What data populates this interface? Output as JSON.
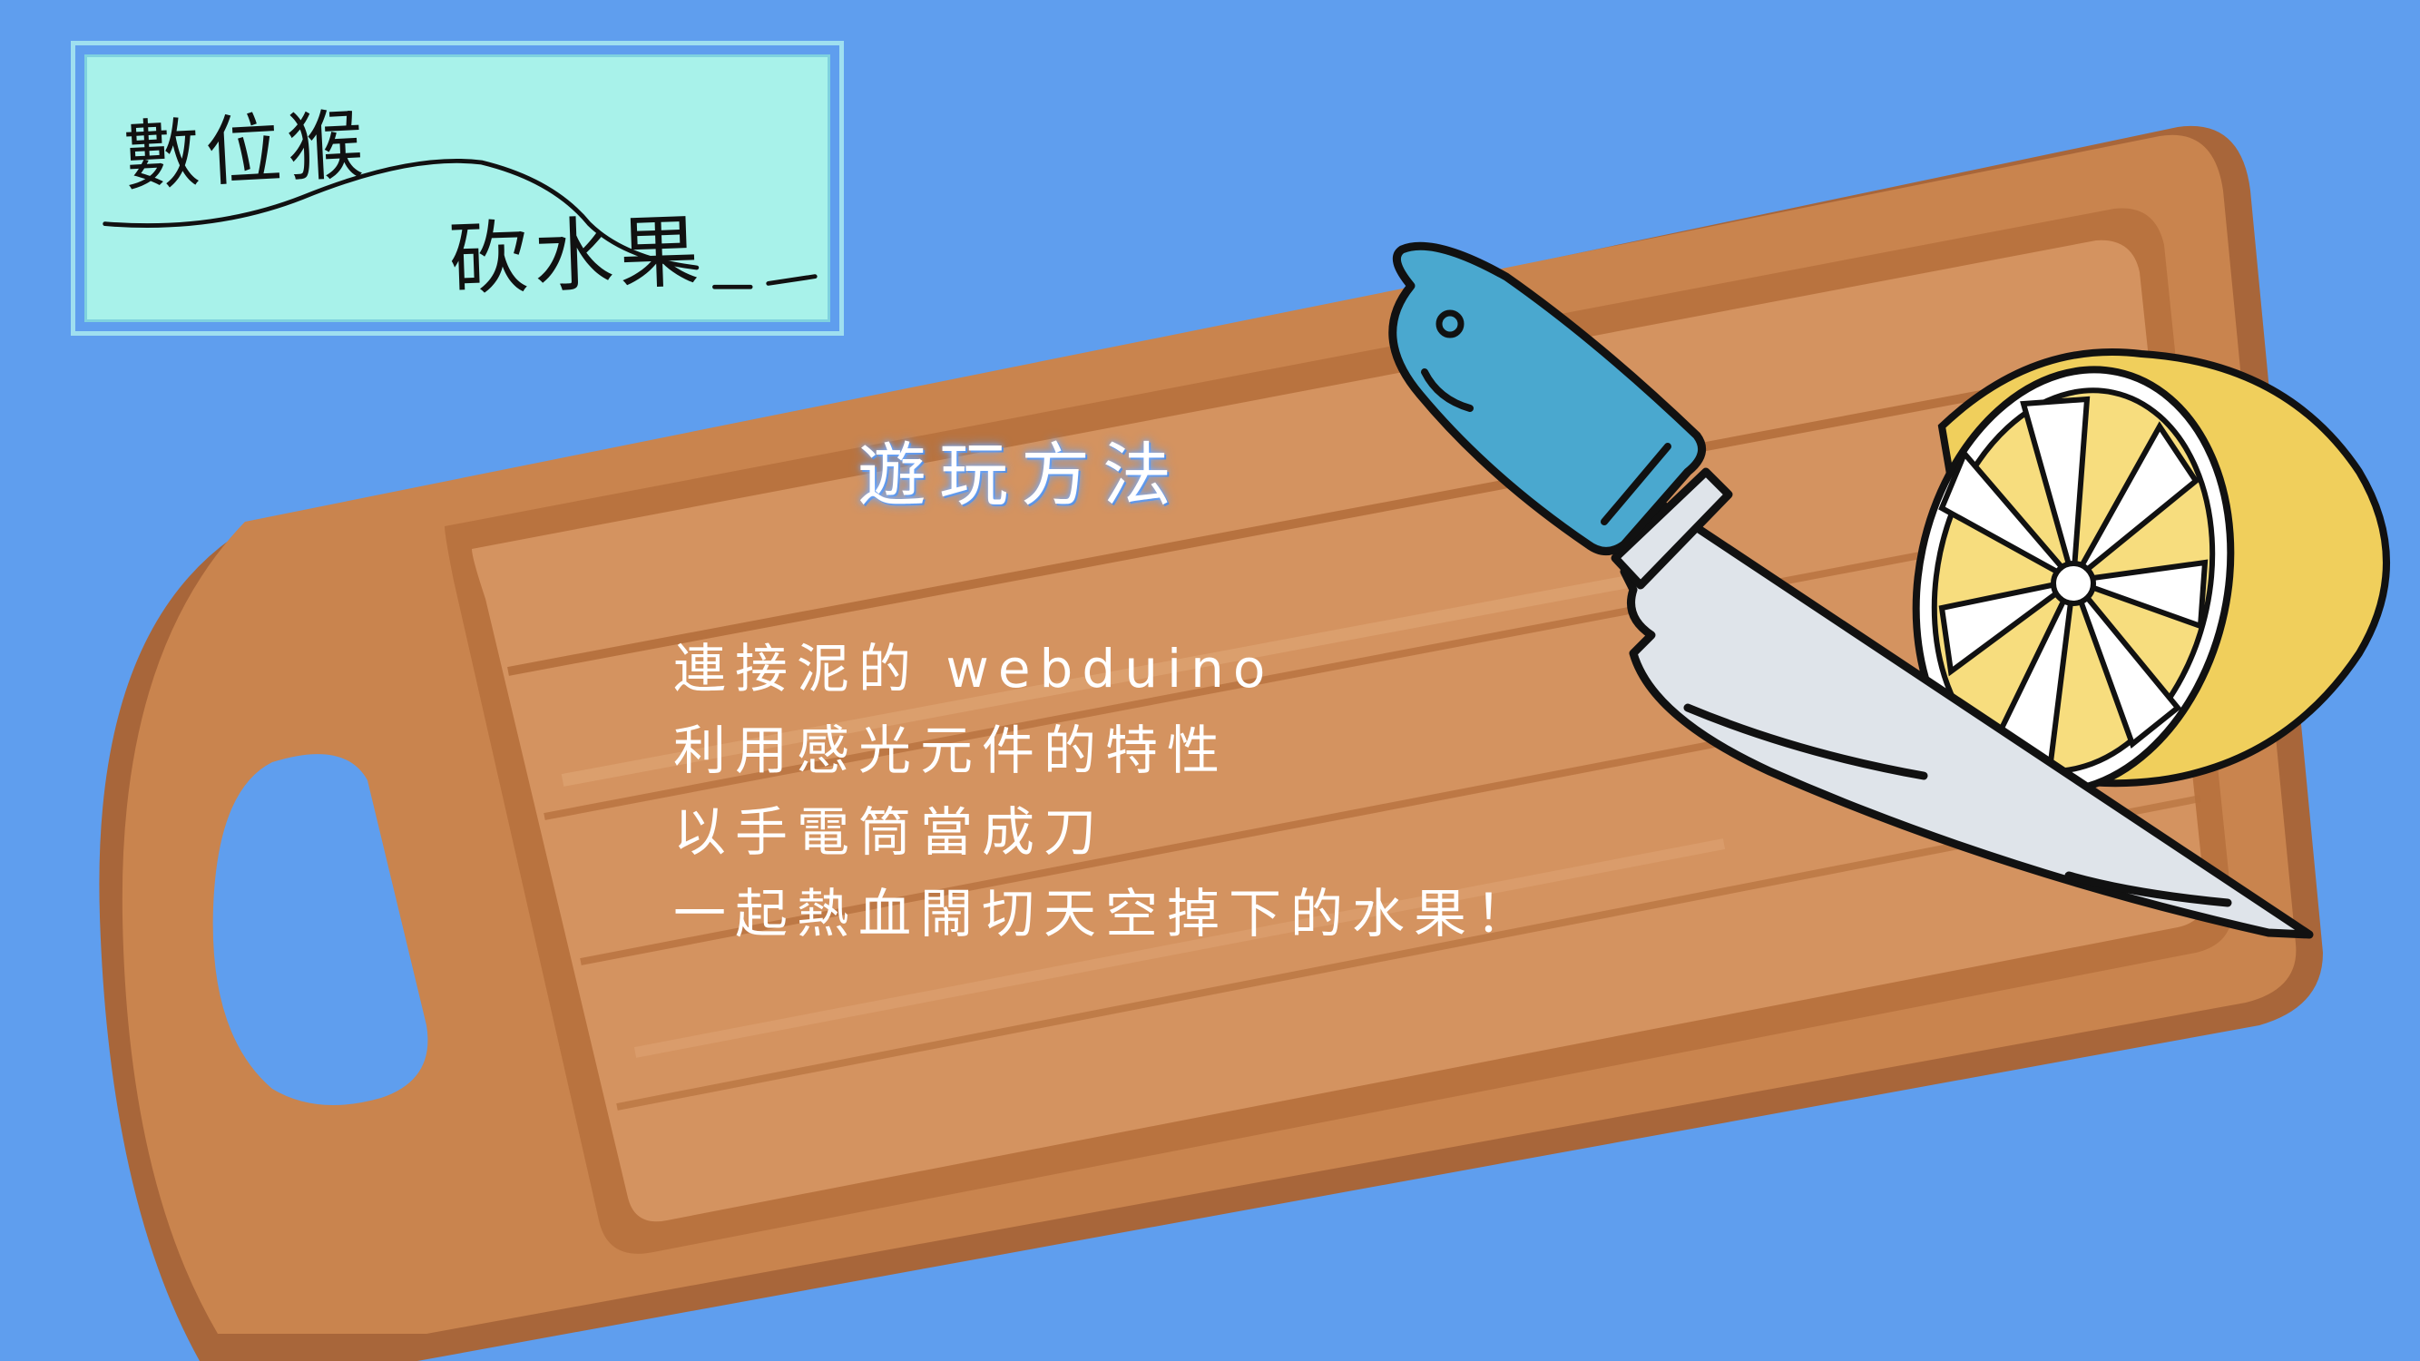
{
  "colors": {
    "background": "#5f9eee",
    "board_main": "#c9844e",
    "board_dark": "#a8663a",
    "board_light": "#d99a63",
    "logo_bg": "#a8f2ea",
    "knife_handle": "#4aa8cf",
    "knife_blade": "#dfe4ea",
    "lemon_skin": "#f2d66b",
    "lemon_flesh": "#f7dd7e",
    "text": "#ffffff"
  },
  "logo": {
    "line1": "數位猴",
    "line2": "砍水果"
  },
  "instructions": {
    "title": "遊玩方法",
    "lines": [
      "連接泥的 webduino",
      "利用感光元件的特性",
      "以手電筒當成刀",
      "一起熱血閙切天空掉下的水果！"
    ]
  },
  "icons": [
    "cutting-board-icon",
    "knife-icon",
    "lemon-icon"
  ]
}
